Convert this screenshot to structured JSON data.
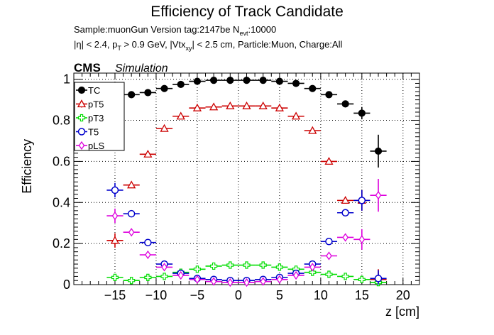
{
  "chart_data": {
    "type": "scatter",
    "title": "Efficiency of Track Candidate",
    "subtitle_line1": {
      "prefix": "Sample:muonGun   Version tag:2147be  N",
      "subscript": "evt",
      "suffix": ":10000"
    },
    "subtitle_line2": {
      "eta": "|η| < 2.4, p",
      "pt_sub": "T",
      "pt": " > 0.9 GeV, |Vtx",
      "vtx_sub": "xy",
      "rest": "| < 2.5 cm, Particle:Muon, Charge:All"
    },
    "cms_label": "CMS",
    "cms_sublabel": "Simulation",
    "xlabel": "z [cm]",
    "ylabel": "Efficiency",
    "xlim": [
      -20,
      22
    ],
    "ylim": [
      0,
      1.03
    ],
    "xticks": [
      -15,
      -10,
      -5,
      0,
      5,
      10,
      15,
      20
    ],
    "yticks": [
      0,
      0.2,
      0.4,
      0.6,
      0.8,
      1
    ],
    "grid": true,
    "legend_position": "top-left",
    "series": [
      {
        "name": "TC",
        "color": "#000000",
        "marker": "filled-circle",
        "x": [
          -15,
          -13,
          -11,
          -9,
          -7,
          -5,
          -3,
          -1,
          1,
          3,
          5,
          7,
          9,
          11,
          13,
          15,
          17
        ],
        "y": [
          0.835,
          0.925,
          0.935,
          0.955,
          0.975,
          0.99,
          0.995,
          0.995,
          0.995,
          0.995,
          0.99,
          0.98,
          0.955,
          0.925,
          0.88,
          0.835,
          0.65
        ],
        "err": [
          0.03,
          0.012,
          0.01,
          0.008,
          0.006,
          0.004,
          0.003,
          0.003,
          0.003,
          0.003,
          0.004,
          0.006,
          0.008,
          0.01,
          0.015,
          0.03,
          0.08
        ]
      },
      {
        "name": "pT5",
        "color": "#cc0000",
        "marker": "open-triangle",
        "x": [
          -15,
          -13,
          -11,
          -9,
          -7,
          -5,
          -3,
          -1,
          1,
          3,
          5,
          7,
          9,
          11,
          13,
          15,
          17
        ],
        "y": [
          0.215,
          0.485,
          0.635,
          0.76,
          0.82,
          0.86,
          0.865,
          0.87,
          0.87,
          0.87,
          0.86,
          0.82,
          0.75,
          0.6,
          0.41,
          0.41,
          0.025
        ],
        "err": [
          0.035,
          0.015,
          0.012,
          0.01,
          0.008,
          0.007,
          0.006,
          0.006,
          0.006,
          0.006,
          0.007,
          0.008,
          0.01,
          0.012,
          0.015,
          0.05,
          0.05
        ]
      },
      {
        "name": "pT3",
        "color": "#00dd00",
        "marker": "open-cross",
        "x": [
          -15,
          -13,
          -11,
          -9,
          -7,
          -5,
          -3,
          -1,
          1,
          3,
          5,
          7,
          9,
          11,
          13,
          15,
          17
        ],
        "y": [
          0.035,
          0.02,
          0.035,
          0.04,
          0.06,
          0.075,
          0.09,
          0.095,
          0.095,
          0.095,
          0.085,
          0.075,
          0.06,
          0.05,
          0.04,
          0.025,
          0.01
        ],
        "err": [
          0.012,
          0.005,
          0.005,
          0.004,
          0.004,
          0.004,
          0.004,
          0.004,
          0.004,
          0.004,
          0.004,
          0.004,
          0.004,
          0.005,
          0.006,
          0.015,
          0.02
        ]
      },
      {
        "name": "T5",
        "color": "#0000cc",
        "marker": "open-circle",
        "x": [
          -15,
          -13,
          -11,
          -9,
          -7,
          -5,
          -3,
          -1,
          1,
          3,
          5,
          7,
          9,
          11,
          13,
          15,
          17
        ],
        "y": [
          0.46,
          0.345,
          0.205,
          0.1,
          0.055,
          0.03,
          0.025,
          0.02,
          0.02,
          0.025,
          0.035,
          0.055,
          0.1,
          0.21,
          0.35,
          0.41,
          0.03
        ],
        "err": [
          0.035,
          0.012,
          0.01,
          0.008,
          0.005,
          0.004,
          0.003,
          0.003,
          0.003,
          0.003,
          0.004,
          0.005,
          0.008,
          0.01,
          0.015,
          0.05,
          0.04
        ]
      },
      {
        "name": "pLS",
        "color": "#dd00dd",
        "marker": "open-diamond",
        "x": [
          -15,
          -13,
          -11,
          -9,
          -7,
          -5,
          -3,
          -1,
          1,
          3,
          5,
          7,
          9,
          11,
          13,
          15,
          17
        ],
        "y": [
          0.335,
          0.255,
          0.145,
          0.085,
          0.045,
          0.025,
          0.015,
          0.01,
          0.01,
          0.015,
          0.025,
          0.045,
          0.085,
          0.14,
          0.23,
          0.22,
          0.435
        ],
        "err": [
          0.035,
          0.012,
          0.009,
          0.007,
          0.005,
          0.004,
          0.003,
          0.003,
          0.003,
          0.003,
          0.004,
          0.005,
          0.007,
          0.009,
          0.014,
          0.05,
          0.08
        ]
      }
    ]
  }
}
